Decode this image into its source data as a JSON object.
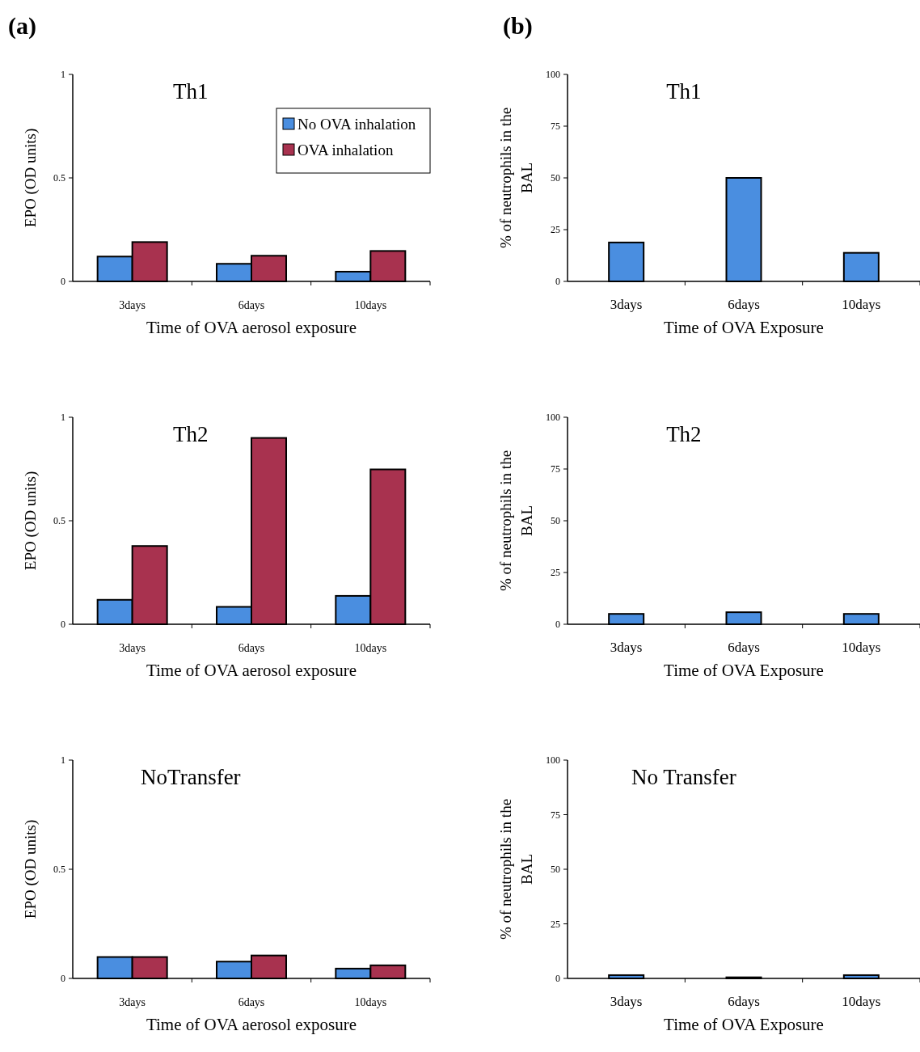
{
  "chart_data": [
    {
      "type": "bar",
      "title": "Th1",
      "annotations": [
        "(a)"
      ],
      "xlabel": "Time of OVA aerosol exposure",
      "ylabel": "EPO (OD units)",
      "categories": [
        "3days",
        "6days",
        "10days"
      ],
      "series": [
        {
          "name": "No OVA inhalation",
          "color": "#4a8ee0",
          "values": [
            0.12,
            0.085,
            0.047
          ]
        },
        {
          "name": "OVA inhalation",
          "color": "#a8324f",
          "values": [
            0.19,
            0.124,
            0.147
          ]
        }
      ],
      "ylim": [
        0,
        1
      ],
      "yticks": [
        0,
        0.5,
        1
      ],
      "legend": "top right"
    },
    {
      "type": "bar",
      "title": "Th1",
      "annotations": [
        "(b)"
      ],
      "xlabel": "Time of OVA Exposure",
      "ylabel": "% of neutrophils in the BAL",
      "categories": [
        "3days",
        "6days",
        "10days"
      ],
      "series": [
        {
          "color": "#4a8ee0",
          "values": [
            18.8,
            50,
            13.8
          ]
        }
      ],
      "ylim": [
        0,
        100
      ],
      "yticks": [
        0,
        25,
        50,
        75,
        100
      ]
    },
    {
      "type": "bar",
      "title": "Th2",
      "xlabel": "Time of OVA aerosol exposure",
      "ylabel": "EPO (OD units)",
      "categories": [
        "3days",
        "6days",
        "10days"
      ],
      "series": [
        {
          "color": "#4a8ee0",
          "values": [
            0.118,
            0.084,
            0.137
          ]
        },
        {
          "color": "#a8324f",
          "values": [
            0.378,
            0.9,
            0.748
          ]
        }
      ],
      "ylim": [
        0,
        1
      ],
      "yticks": [
        0,
        0.5,
        1
      ]
    },
    {
      "type": "bar",
      "title": "Th2",
      "xlabel": "Time of OVA Exposure",
      "ylabel": "% of neutrophils in the BAL",
      "categories": [
        "3days",
        "6days",
        "10days"
      ],
      "series": [
        {
          "color": "#4a8ee0",
          "values": [
            5,
            5.8,
            5
          ]
        }
      ],
      "ylim": [
        0,
        100
      ],
      "yticks": [
        0,
        25,
        50,
        75,
        100
      ]
    },
    {
      "type": "bar",
      "title": "NoTransfer",
      "xlabel": "Time of OVA aerosol exposure",
      "ylabel": "EPO (OD units)",
      "categories": [
        "3days",
        "6days",
        "10days"
      ],
      "series": [
        {
          "color": "#4a8ee0",
          "values": [
            0.098,
            0.077,
            0.045
          ]
        },
        {
          "color": "#a8324f",
          "values": [
            0.098,
            0.105,
            0.06
          ]
        }
      ],
      "ylim": [
        0,
        1
      ],
      "yticks": [
        0,
        0.5,
        1
      ]
    },
    {
      "type": "bar",
      "title": "No Transfer",
      "xlabel": "Time of OVA Exposure",
      "ylabel": "% of neutrophils in the BAL",
      "categories": [
        "3days",
        "6days",
        "10days"
      ],
      "series": [
        {
          "color": "#4a8ee0",
          "values": [
            1.5,
            0.5,
            1.5
          ]
        }
      ],
      "ylim": [
        0,
        100
      ],
      "yticks": [
        0,
        25,
        50,
        75,
        100
      ]
    }
  ]
}
